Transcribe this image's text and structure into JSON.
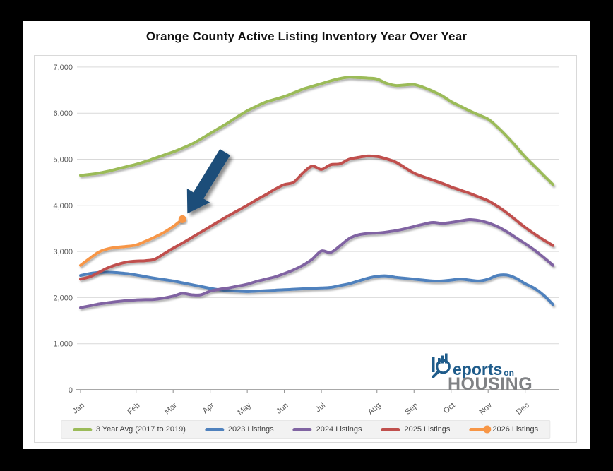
{
  "page": {
    "title": "Orange County Active Listing Inventory Year Over Year"
  },
  "logo": {
    "word_initial": "R",
    "word_rest": "eports",
    "connector": "on",
    "word_bottom": "HOUSING",
    "navy": "#1F5C8B",
    "gray": "#808285"
  },
  "colors": {
    "grid": "#D9D9D9",
    "axis": "#8C8C8C",
    "tick_text": "#595959",
    "legend_text": "#404040",
    "frame": "#000000",
    "background": "#FFFFFF",
    "arrow": "#1F4E79"
  },
  "chart_data": {
    "type": "line",
    "title": "Orange County Active Listing Inventory Year Over Year",
    "xlabel": "",
    "ylabel": "",
    "grid": true,
    "legend_position": "bottom",
    "x_axis": {
      "unit": "week-of-year",
      "points_per_full_series": 52,
      "month_labels": [
        "Jan",
        "Feb",
        "Mar",
        "Apr",
        "May",
        "Jun",
        "Jul",
        "Aug",
        "Sep",
        "Oct",
        "Nov",
        "Dec"
      ],
      "label_weeks": [
        1,
        7,
        11,
        15,
        19,
        23,
        27,
        33,
        37,
        41,
        45,
        49
      ]
    },
    "y_axis": {
      "min": 0,
      "max": 7000,
      "step": 1000,
      "tick_labels": [
        "0",
        "1,000",
        "2,000",
        "3,000",
        "4,000",
        "5,000",
        "6,000",
        "7,000"
      ]
    },
    "series": [
      {
        "name": "3 Year Avg (2017 to 2019)",
        "color": "#9BBB59",
        "end_marker": false,
        "values": [
          4650,
          4670,
          4700,
          4740,
          4790,
          4840,
          4890,
          4950,
          5020,
          5090,
          5160,
          5240,
          5330,
          5440,
          5560,
          5680,
          5800,
          5930,
          6050,
          6150,
          6240,
          6300,
          6360,
          6440,
          6520,
          6580,
          6640,
          6700,
          6750,
          6780,
          6770,
          6760,
          6740,
          6650,
          6600,
          6610,
          6620,
          6560,
          6480,
          6380,
          6250,
          6150,
          6050,
          5960,
          5870,
          5700,
          5500,
          5280,
          5050,
          4850,
          4650,
          4450
        ]
      },
      {
        "name": "2023 Listings",
        "color": "#4F81BD",
        "end_marker": false,
        "values": [
          2480,
          2520,
          2545,
          2550,
          2540,
          2520,
          2490,
          2455,
          2420,
          2390,
          2360,
          2320,
          2280,
          2240,
          2200,
          2170,
          2150,
          2140,
          2130,
          2140,
          2150,
          2160,
          2170,
          2180,
          2190,
          2200,
          2210,
          2220,
          2260,
          2300,
          2360,
          2420,
          2460,
          2470,
          2440,
          2420,
          2400,
          2380,
          2360,
          2360,
          2380,
          2400,
          2380,
          2360,
          2400,
          2480,
          2490,
          2420,
          2300,
          2200,
          2050,
          1850
        ]
      },
      {
        "name": "2024 Listings",
        "color": "#8064A2",
        "end_marker": false,
        "values": [
          1780,
          1820,
          1860,
          1890,
          1915,
          1935,
          1950,
          1955,
          1960,
          1990,
          2030,
          2090,
          2060,
          2060,
          2140,
          2180,
          2210,
          2250,
          2290,
          2350,
          2400,
          2450,
          2520,
          2600,
          2700,
          2830,
          3010,
          2980,
          3120,
          3280,
          3360,
          3390,
          3400,
          3420,
          3450,
          3490,
          3540,
          3590,
          3630,
          3610,
          3630,
          3660,
          3690,
          3670,
          3620,
          3540,
          3430,
          3300,
          3170,
          3030,
          2870,
          2700
        ]
      },
      {
        "name": "2025 Listings",
        "color": "#C0504D",
        "end_marker": false,
        "values": [
          2400,
          2450,
          2550,
          2650,
          2720,
          2770,
          2790,
          2800,
          2830,
          2950,
          3070,
          3180,
          3300,
          3420,
          3540,
          3660,
          3780,
          3890,
          4000,
          4120,
          4230,
          4350,
          4450,
          4500,
          4700,
          4850,
          4780,
          4880,
          4900,
          5000,
          5040,
          5070,
          5060,
          5010,
          4940,
          4820,
          4700,
          4620,
          4550,
          4480,
          4400,
          4330,
          4260,
          4180,
          4100,
          3980,
          3840,
          3680,
          3520,
          3380,
          3250,
          3130
        ]
      },
      {
        "name": "2026 Listings",
        "color": "#F79646",
        "end_marker": true,
        "values": [
          2700,
          2850,
          2990,
          3060,
          3090,
          3110,
          3140,
          3220,
          3310,
          3410,
          3540,
          3700
        ]
      }
    ],
    "annotation": {
      "type": "arrow",
      "target_series": "2026 Listings",
      "target_point": "last",
      "color": "#1F4E79",
      "direction": "pointing-down-left-at-latest-2026-value"
    }
  }
}
